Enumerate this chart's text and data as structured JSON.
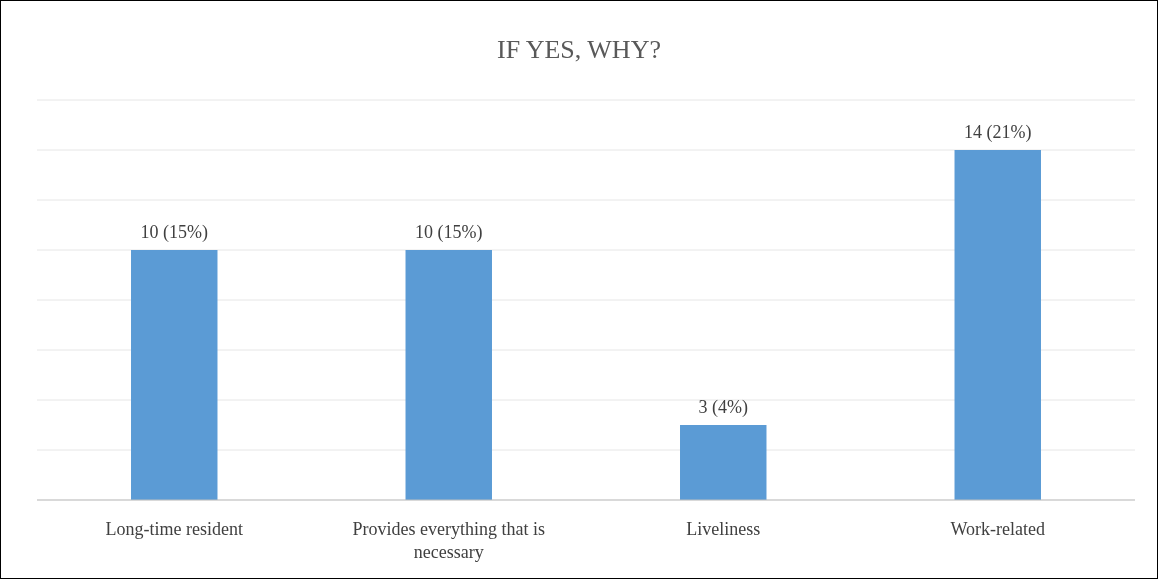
{
  "chart_data": {
    "type": "bar",
    "title": "IF YES, WHY?",
    "categories": [
      "Long-time resident",
      "Provides everything that is necessary",
      "Liveliness",
      "Work-related"
    ],
    "values": [
      10,
      10,
      3,
      14
    ],
    "value_labels": [
      "10 (15%)",
      "10 (15%)",
      "3 (4%)",
      "14 (21%)"
    ],
    "color": "#5b9bd5",
    "ylim": [
      0,
      16
    ],
    "yticks": [
      {
        "value": 0,
        "label": null
      },
      {
        "value": 2,
        "label": null
      },
      {
        "value": 4,
        "label": null
      },
      {
        "value": 6,
        "label": null
      },
      {
        "value": 8,
        "label": null
      },
      {
        "value": 10,
        "label": null
      },
      {
        "value": 12,
        "label": null
      },
      {
        "value": 14,
        "label": null
      },
      {
        "value": 16,
        "label": null
      }
    ],
    "tick_labels": "x",
    "grid": "y"
  }
}
